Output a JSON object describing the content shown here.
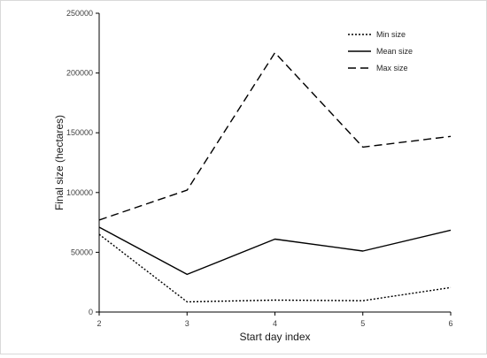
{
  "chart_data": {
    "type": "line",
    "title": "",
    "xlabel": "Start day index",
    "ylabel": "Final size (hectares)",
    "x": [
      2,
      3,
      4,
      5,
      6
    ],
    "xlim": [
      2,
      6
    ],
    "ylim": [
      0,
      250000
    ],
    "x_ticks": [
      "2",
      "3",
      "4",
      "5",
      "6"
    ],
    "y_ticks": [
      "0",
      "50000",
      "100000",
      "150000",
      "200000",
      "250000"
    ],
    "grid": false,
    "legend_position": "top-right",
    "series": [
      {
        "name": "Min size",
        "style": "dotted",
        "color": "#000000",
        "values": [
          65000,
          8500,
          10000,
          9500,
          20500
        ]
      },
      {
        "name": "Mean size",
        "style": "solid",
        "color": "#000000",
        "values": [
          71000,
          31500,
          61000,
          51000,
          68500
        ]
      },
      {
        "name": "Max size",
        "style": "dashed",
        "color": "#000000",
        "values": [
          77000,
          102000,
          217000,
          138000,
          147000
        ]
      }
    ]
  }
}
